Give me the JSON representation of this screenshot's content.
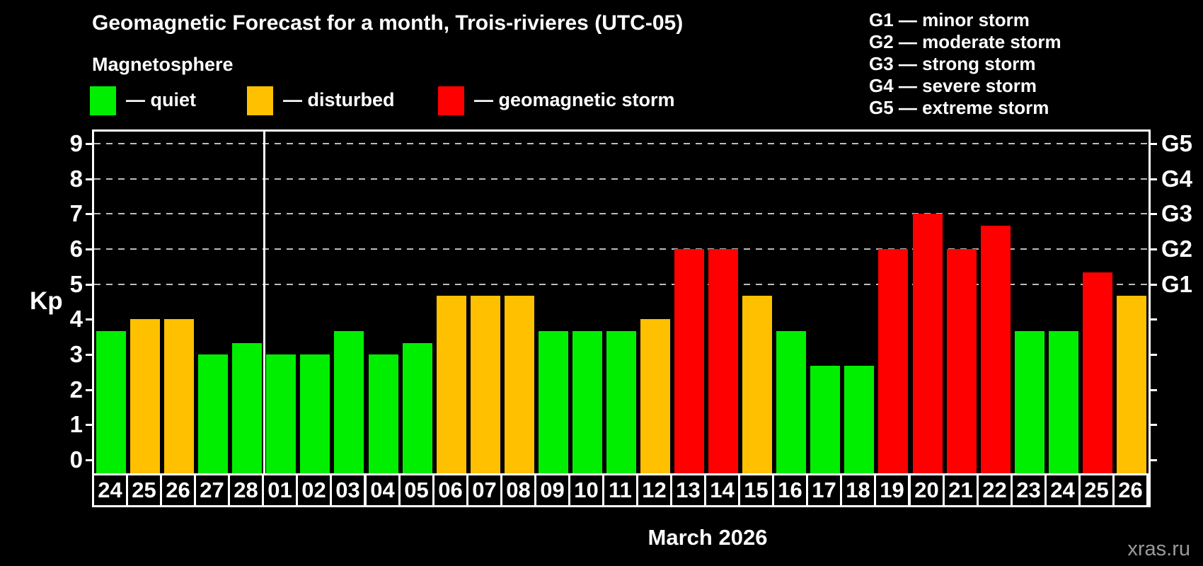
{
  "chart_data": {
    "type": "bar",
    "title": "Geomagnetic Forecast for a month, Trois-rivieres (UTC-05)",
    "subtitle": "Magnetosphere",
    "xlabel": "March 2026",
    "ylabel": "Kp",
    "ylim": [
      0,
      9
    ],
    "y_ticks": [
      0,
      1,
      2,
      3,
      4,
      5,
      6,
      7,
      8,
      9
    ],
    "gridlines_at": [
      5,
      6,
      7,
      8,
      9
    ],
    "grid": true,
    "legend_position": "top-left",
    "legend": [
      {
        "key": "quiet",
        "label": "— quiet",
        "color": "#00ef00"
      },
      {
        "key": "disturbed",
        "label": "— disturbed",
        "color": "#ffc000"
      },
      {
        "key": "storm",
        "label": "— geomagnetic storm",
        "color": "#ff0000"
      }
    ],
    "g_scale": [
      {
        "label": "G1",
        "kp": 5,
        "desc": "minor storm"
      },
      {
        "label": "G2",
        "kp": 6,
        "desc": "moderate storm"
      },
      {
        "label": "G3",
        "kp": 7,
        "desc": "strong storm"
      },
      {
        "label": "G4",
        "kp": 8,
        "desc": "severe storm"
      },
      {
        "label": "G5",
        "kp": 9,
        "desc": "extreme storm"
      }
    ],
    "categories": [
      "24",
      "25",
      "26",
      "27",
      "28",
      "01",
      "02",
      "03",
      "04",
      "05",
      "06",
      "07",
      "08",
      "09",
      "10",
      "11",
      "12",
      "13",
      "14",
      "15",
      "16",
      "17",
      "18",
      "19",
      "20",
      "21",
      "22",
      "23",
      "24",
      "25",
      "26"
    ],
    "values": [
      3.67,
      4.0,
      4.0,
      3.0,
      3.33,
      3.0,
      3.0,
      3.67,
      3.0,
      3.33,
      4.67,
      4.67,
      4.67,
      3.67,
      3.67,
      3.67,
      4.0,
      6.0,
      6.0,
      4.67,
      3.67,
      2.67,
      2.67,
      6.0,
      7.0,
      6.0,
      6.67,
      3.67,
      3.67,
      5.33,
      4.67
    ],
    "levels": [
      "quiet",
      "disturbed",
      "disturbed",
      "quiet",
      "quiet",
      "quiet",
      "quiet",
      "quiet",
      "quiet",
      "quiet",
      "disturbed",
      "disturbed",
      "disturbed",
      "quiet",
      "quiet",
      "quiet",
      "disturbed",
      "storm",
      "storm",
      "disturbed",
      "quiet",
      "quiet",
      "quiet",
      "storm",
      "storm",
      "storm",
      "storm",
      "quiet",
      "quiet",
      "storm",
      "disturbed"
    ],
    "colors": {
      "quiet": "#00ef00",
      "disturbed": "#ffc000",
      "storm": "#ff0000"
    },
    "month_boundary_after_index": 4,
    "watermark": "xras.ru"
  }
}
